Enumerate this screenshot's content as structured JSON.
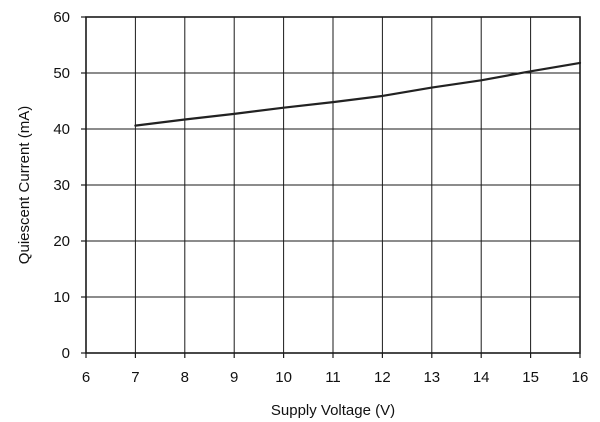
{
  "chart_data": {
    "type": "line",
    "title": "",
    "xlabel": "Supply Voltage (V)",
    "ylabel": "Quiescent Current (mA)",
    "xlim": [
      6,
      16
    ],
    "ylim": [
      0,
      60
    ],
    "x_ticks": [
      "6",
      "7",
      "8",
      "9",
      "10",
      "11",
      "12",
      "13",
      "14",
      "15",
      "16"
    ],
    "y_ticks": [
      "0",
      "10",
      "20",
      "30",
      "40",
      "50",
      "60"
    ],
    "grid": true,
    "series": [
      {
        "color": "#222222",
        "x": [
          7,
          8,
          9,
          10,
          11,
          12,
          13,
          14,
          15,
          16
        ],
        "y": [
          40.6,
          41.7,
          42.7,
          43.8,
          44.8,
          45.9,
          47.4,
          48.7,
          50.3,
          51.8
        ]
      }
    ]
  }
}
